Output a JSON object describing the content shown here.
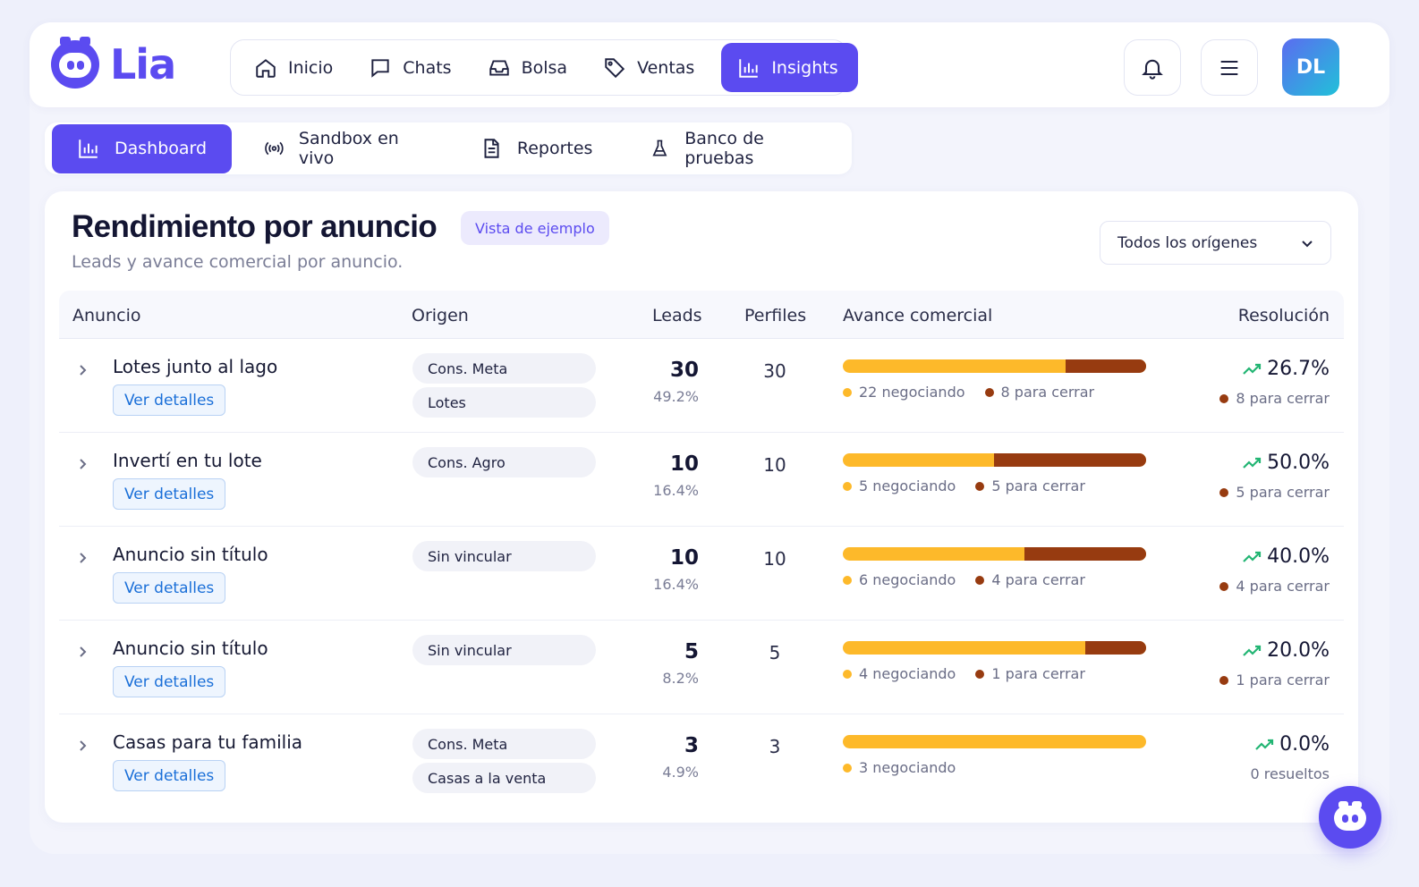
{
  "brand": {
    "name": "Lia",
    "color": "#5b4bf0"
  },
  "nav": [
    {
      "label": "Inicio",
      "icon": "home-icon",
      "active": false
    },
    {
      "label": "Chats",
      "icon": "chat-icon",
      "active": false
    },
    {
      "label": "Bolsa",
      "icon": "inbox-icon",
      "active": false
    },
    {
      "label": "Ventas",
      "icon": "tag-icon",
      "active": false
    },
    {
      "label": "Insights",
      "icon": "bar-chart-icon",
      "active": true
    }
  ],
  "header": {
    "notifications_icon": "bell-icon",
    "menu_icon": "hamburger-menu-icon",
    "avatar_initials": "DL"
  },
  "subnav": [
    {
      "label": "Dashboard",
      "icon": "bar-chart-icon",
      "active": true
    },
    {
      "label": "Sandbox en vivo",
      "icon": "broadcast-icon",
      "active": false
    },
    {
      "label": "Reportes",
      "icon": "document-icon",
      "active": false
    },
    {
      "label": "Banco de pruebas",
      "icon": "flask-icon",
      "active": false
    }
  ],
  "card": {
    "title": "Rendimiento por anuncio",
    "badge": "Vista de ejemplo",
    "subtitle": "Leads y avance comercial por anuncio.",
    "filter": {
      "selected": "Todos los orígenes"
    }
  },
  "table": {
    "headers": {
      "anuncio": "Anuncio",
      "origen": "Origen",
      "leads": "Leads",
      "perfiles": "Perfiles",
      "avance": "Avance comercial",
      "resolucion": "Resolución"
    },
    "details_label": "Ver detalles",
    "rows": [
      {
        "name": "Lotes junto al lago",
        "origins": [
          "Cons. Meta",
          "Lotes"
        ],
        "leads": "30",
        "leads_pct": "49.2%",
        "perfiles": "30",
        "negotiating": 22,
        "to_close": 8,
        "negotiating_label": "22 negociando",
        "to_close_label": "8 para cerrar",
        "resolution": "26.7%",
        "resolution_sub": "8 para cerrar",
        "resolution_sub_dot": true
      },
      {
        "name": "Invertí en tu lote",
        "origins": [
          "Cons. Agro"
        ],
        "leads": "10",
        "leads_pct": "16.4%",
        "perfiles": "10",
        "negotiating": 5,
        "to_close": 5,
        "negotiating_label": "5 negociando",
        "to_close_label": "5 para cerrar",
        "resolution": "50.0%",
        "resolution_sub": "5 para cerrar",
        "resolution_sub_dot": true
      },
      {
        "name": "Anuncio sin título",
        "origins": [
          "Sin vincular"
        ],
        "leads": "10",
        "leads_pct": "16.4%",
        "perfiles": "10",
        "negotiating": 6,
        "to_close": 4,
        "negotiating_label": "6 negociando",
        "to_close_label": "4 para cerrar",
        "resolution": "40.0%",
        "resolution_sub": "4 para cerrar",
        "resolution_sub_dot": true
      },
      {
        "name": "Anuncio sin título",
        "origins": [
          "Sin vincular"
        ],
        "leads": "5",
        "leads_pct": "8.2%",
        "perfiles": "5",
        "negotiating": 4,
        "to_close": 1,
        "negotiating_label": "4 negociando",
        "to_close_label": "1 para cerrar",
        "resolution": "20.0%",
        "resolution_sub": "1 para cerrar",
        "resolution_sub_dot": true
      },
      {
        "name": "Casas para tu familia",
        "origins": [
          "Cons. Meta",
          "Casas a la venta"
        ],
        "leads": "3",
        "leads_pct": "4.9%",
        "perfiles": "3",
        "negotiating": 3,
        "to_close": 0,
        "negotiating_label": "3 negociando",
        "to_close_label": "",
        "resolution": "0.0%",
        "resolution_sub": "0 resueltos",
        "resolution_sub_dot": false
      }
    ]
  },
  "colors": {
    "negotiating": "#fdb92a",
    "to_close": "#973b10",
    "trend": "#22b573"
  }
}
